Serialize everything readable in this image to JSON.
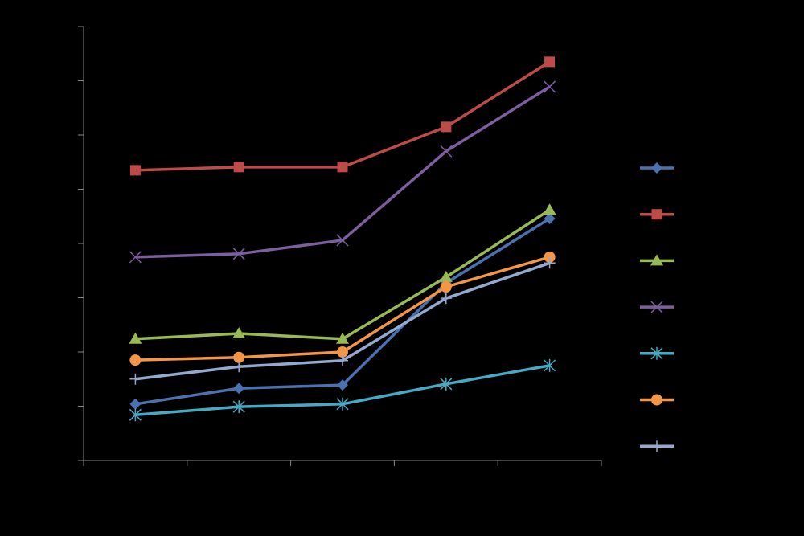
{
  "chart_data": {
    "type": "line",
    "categories": [
      null,
      null,
      null,
      null,
      null
    ],
    "ylim": [
      0,
      8
    ],
    "yticks": [
      0,
      1,
      2,
      3,
      4,
      5,
      6,
      7,
      8
    ],
    "legend": "right",
    "series": [
      {
        "color": "#4a72b0",
        "marker": "diamond",
        "values": [
          1.04,
          1.33,
          1.39,
          3.27,
          4.46
        ]
      },
      {
        "color": "#be4b48",
        "marker": "square",
        "values": [
          5.35,
          5.41,
          5.41,
          6.15,
          7.35
        ]
      },
      {
        "color": "#98b954",
        "marker": "triangle",
        "values": [
          2.24,
          2.34,
          2.24,
          3.38,
          4.62
        ]
      },
      {
        "color": "#7d5fa0",
        "marker": "x",
        "values": [
          3.75,
          3.81,
          4.06,
          5.7,
          6.89
        ]
      },
      {
        "color": "#46aac5",
        "marker": "star",
        "values": [
          0.84,
          0.99,
          1.04,
          1.41,
          1.75
        ]
      },
      {
        "color": "#f59646",
        "marker": "circle",
        "values": [
          1.85,
          1.9,
          2.0,
          3.2,
          3.75
        ]
      },
      {
        "color": "#93a9d0",
        "marker": "plus",
        "values": [
          1.5,
          1.73,
          1.84,
          2.99,
          3.64
        ]
      }
    ]
  }
}
